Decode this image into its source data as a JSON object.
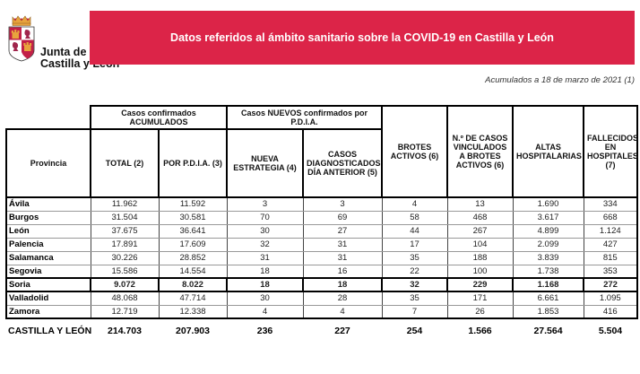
{
  "logo": {
    "line1": "Junta de",
    "line2": "Castilla y León"
  },
  "banner": {
    "title": "Datos referidos al ámbito sanitario sobre la COVID-19 en Castilla y León",
    "bg_color": "#DC2448",
    "text_color": "#FFFFFF"
  },
  "date_note": "Acumulados a 18 de marzo de 2021 (1)",
  "table": {
    "group_headers": {
      "accumulated": "Casos confirmados ACUMULADOS",
      "new_cases": "Casos NUEVOS confirmados por P.D.I.A."
    },
    "col_headers": {
      "provincia": "Provincia",
      "total": "TOTAL (2)",
      "por_pdia": "POR P.D.I.A. (3)",
      "nueva_estrategia": "NUEVA ESTRATEGIA (4)",
      "diagnosticados": "CASOS DIAGNOSTICADOS DÍA ANTERIOR (5)",
      "brotes": "BROTES ACTIVOS (6)",
      "vinculados": "N.º DE CASOS VINCULADOS A BROTES ACTIVOS (6)",
      "altas": "ALTAS HOSPITALARIAS",
      "fallecidos": "FALLECIDOS EN HOSPITALES (7)"
    },
    "rows": [
      {
        "provincia": "Ávila",
        "bold": false,
        "values": [
          "11.962",
          "11.592",
          "3",
          "3",
          "4",
          "13",
          "1.690",
          "334"
        ]
      },
      {
        "provincia": "Burgos",
        "bold": false,
        "values": [
          "31.504",
          "30.581",
          "70",
          "69",
          "58",
          "468",
          "3.617",
          "668"
        ]
      },
      {
        "provincia": "León",
        "bold": false,
        "values": [
          "37.675",
          "36.641",
          "30",
          "27",
          "44",
          "267",
          "4.899",
          "1.124"
        ]
      },
      {
        "provincia": "Palencia",
        "bold": false,
        "values": [
          "17.891",
          "17.609",
          "32",
          "31",
          "17",
          "104",
          "2.099",
          "427"
        ]
      },
      {
        "provincia": "Salamanca",
        "bold": false,
        "values": [
          "30.226",
          "28.852",
          "31",
          "31",
          "35",
          "188",
          "3.839",
          "815"
        ]
      },
      {
        "provincia": "Segovia",
        "bold": false,
        "values": [
          "15.586",
          "14.554",
          "18",
          "16",
          "22",
          "100",
          "1.738",
          "353"
        ]
      },
      {
        "provincia": "Soria",
        "bold": true,
        "values": [
          "9.072",
          "8.022",
          "18",
          "18",
          "32",
          "229",
          "1.168",
          "272"
        ]
      },
      {
        "provincia": "Valladolid",
        "bold": false,
        "values": [
          "48.068",
          "47.714",
          "30",
          "28",
          "35",
          "171",
          "6.661",
          "1.095"
        ]
      },
      {
        "provincia": "Zamora",
        "bold": false,
        "values": [
          "12.719",
          "12.338",
          "4",
          "4",
          "7",
          "26",
          "1.853",
          "416"
        ]
      }
    ],
    "footer": {
      "label": "CASTILLA Y LEÓN",
      "values": [
        "214.703",
        "207.903",
        "236",
        "227",
        "254",
        "1.566",
        "27.564",
        "5.504"
      ]
    }
  }
}
